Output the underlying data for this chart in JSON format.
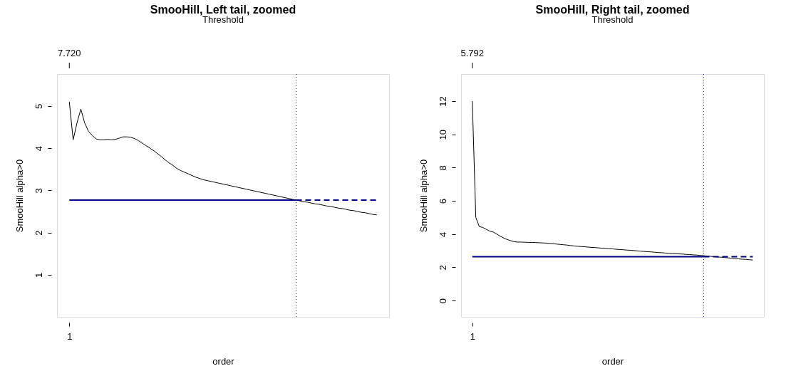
{
  "chart_data": [
    {
      "type": "line",
      "title": "SmooHill, Left tail, zoomed",
      "x2label": "Threshold",
      "xlabel": "order",
      "ylabel": "SmooHill alpha>0",
      "categories": [
        "1",
        null,
        null,
        null,
        null,
        null,
        null,
        null,
        null,
        null,
        null,
        null,
        null,
        null,
        null,
        null,
        null,
        null,
        null,
        null,
        null,
        null,
        null,
        null,
        null,
        null,
        null,
        null,
        null,
        null,
        null,
        null,
        null,
        null,
        null,
        null,
        null,
        null,
        null,
        null,
        null,
        null,
        null,
        null,
        null,
        null,
        null,
        null,
        null,
        null,
        null,
        null,
        null,
        null,
        null,
        null,
        null,
        null,
        null,
        null,
        null,
        null,
        null,
        null,
        null,
        null,
        null,
        null,
        null,
        null,
        null,
        null,
        null,
        null,
        null,
        null,
        null,
        null,
        null,
        null,
        null
      ],
      "ylim": [
        0,
        5.76
      ],
      "yticks": [
        1,
        2,
        3,
        4,
        5
      ],
      "grid": false,
      "annotations": [
        {
          "text": "7.720",
          "x": "1"
        }
      ],
      "series": [
        {
          "color": "#000000",
          "values": [
            5.1,
            4.2,
            4.6,
            4.93,
            4.6,
            4.4,
            4.3,
            4.22,
            4.2,
            4.2,
            4.21,
            4.2,
            4.21,
            4.24,
            4.27,
            4.27,
            4.26,
            4.23,
            4.18,
            4.12,
            4.06,
            4.0,
            3.94,
            3.87,
            3.8,
            3.72,
            3.65,
            3.59,
            3.52,
            3.47,
            3.43,
            3.39,
            3.35,
            3.31,
            3.28,
            3.25,
            3.23,
            3.21,
            3.19,
            3.17,
            3.15,
            3.13,
            3.11,
            3.09,
            3.07,
            3.05,
            3.03,
            3.01,
            2.99,
            2.97,
            2.95,
            2.93,
            2.91,
            2.89,
            2.87,
            2.85,
            2.83,
            2.81,
            2.79,
            2.77,
            2.75,
            2.73,
            2.72,
            2.7,
            2.68,
            2.67,
            2.65,
            2.63,
            2.62,
            2.6,
            2.58,
            2.57,
            2.55,
            2.53,
            2.52,
            2.5,
            2.48,
            2.47,
            2.45,
            2.43,
            2.42
          ]
        },
        {
          "color": "#000080",
          "line_style": "solid",
          "values": [
            2.77,
            2.77,
            2.77,
            2.77,
            2.77,
            2.77,
            2.77,
            2.77,
            2.77,
            2.77,
            2.77,
            2.77,
            2.77,
            2.77,
            2.77,
            2.77,
            2.77,
            2.77,
            2.77,
            2.77,
            2.77,
            2.77,
            2.77,
            2.77,
            2.77,
            2.77,
            2.77,
            2.77,
            2.77,
            2.77,
            2.77,
            2.77,
            2.77,
            2.77,
            2.77,
            2.77,
            2.77,
            2.77,
            2.77,
            2.77,
            2.77,
            2.77,
            2.77,
            2.77,
            2.77,
            2.77,
            2.77,
            2.77,
            2.77,
            2.77,
            2.77,
            2.77,
            2.77,
            2.77,
            2.77,
            2.77,
            2.77,
            2.77,
            2.77,
            2.77,
            null,
            null,
            null,
            null,
            null,
            null,
            null,
            null,
            null,
            null,
            null,
            null,
            null,
            null,
            null,
            null,
            null,
            null,
            null,
            null,
            null
          ]
        },
        {
          "color": "#000080",
          "line_style": "dashed",
          "values": [
            null,
            null,
            null,
            null,
            null,
            null,
            null,
            null,
            null,
            null,
            null,
            null,
            null,
            null,
            null,
            null,
            null,
            null,
            null,
            null,
            null,
            null,
            null,
            null,
            null,
            null,
            null,
            null,
            null,
            null,
            null,
            null,
            null,
            null,
            null,
            null,
            null,
            null,
            null,
            null,
            null,
            null,
            null,
            null,
            null,
            null,
            null,
            null,
            null,
            null,
            null,
            null,
            null,
            null,
            null,
            null,
            null,
            null,
            null,
            2.77,
            2.77,
            2.77,
            2.77,
            2.77,
            2.77,
            2.77,
            2.77,
            2.77,
            2.77,
            2.77,
            2.77,
            2.77,
            2.77,
            2.77,
            2.77,
            2.77,
            2.77,
            2.77,
            2.77,
            2.77,
            2.77
          ]
        }
      ]
    },
    {
      "type": "line",
      "title": "SmooHill, Right tail, zoomed",
      "x2label": "Threshold",
      "xlabel": "order",
      "ylabel": "SmooHill alpha>0",
      "categories": [
        "1",
        null,
        null,
        null,
        null,
        null,
        null,
        null,
        null,
        null,
        null,
        null,
        null,
        null,
        null,
        null,
        null,
        null,
        null,
        null,
        null,
        null,
        null,
        null,
        null,
        null,
        null,
        null,
        null,
        null,
        null,
        null,
        null,
        null,
        null,
        null,
        null,
        null,
        null,
        null,
        null,
        null,
        null,
        null,
        null,
        null,
        null,
        null,
        null,
        null,
        null,
        null,
        null,
        null,
        null,
        null,
        null,
        null,
        null,
        null,
        null,
        null,
        null,
        null,
        null,
        null,
        null,
        null,
        null,
        null,
        null,
        null,
        null,
        null,
        null,
        null,
        null,
        null,
        null,
        null,
        null
      ],
      "ylim": [
        -0.98,
        13.63
      ],
      "yticks": [
        0,
        2,
        4,
        6,
        8,
        10,
        12
      ],
      "grid": false,
      "annotations": [
        {
          "text": "5.792",
          "x": "1"
        }
      ],
      "series": [
        {
          "color": "#000000",
          "values": [
            12.0,
            5.0,
            4.45,
            4.4,
            4.28,
            4.18,
            4.12,
            4.0,
            3.87,
            3.76,
            3.67,
            3.6,
            3.54,
            3.52,
            3.52,
            3.51,
            3.5,
            3.5,
            3.49,
            3.48,
            3.47,
            3.46,
            3.44,
            3.42,
            3.4,
            3.38,
            3.36,
            3.34,
            3.31,
            3.29,
            3.27,
            3.25,
            3.24,
            3.22,
            3.2,
            3.19,
            3.17,
            3.15,
            3.14,
            3.12,
            3.11,
            3.09,
            3.07,
            3.06,
            3.04,
            3.03,
            3.01,
            2.99,
            2.97,
            2.96,
            2.94,
            2.93,
            2.91,
            2.89,
            2.88,
            2.86,
            2.85,
            2.83,
            2.82,
            2.81,
            2.8,
            2.78,
            2.77,
            2.75,
            2.74,
            2.72,
            2.7,
            2.68,
            2.66,
            2.64,
            2.62,
            2.61,
            2.59,
            2.57,
            2.55,
            2.53,
            2.51,
            2.49,
            2.48,
            2.46,
            2.44
          ]
        },
        {
          "color": "#000080",
          "line_style": "solid",
          "values": [
            2.64,
            2.64,
            2.64,
            2.64,
            2.64,
            2.64,
            2.64,
            2.64,
            2.64,
            2.64,
            2.64,
            2.64,
            2.64,
            2.64,
            2.64,
            2.64,
            2.64,
            2.64,
            2.64,
            2.64,
            2.64,
            2.64,
            2.64,
            2.64,
            2.64,
            2.64,
            2.64,
            2.64,
            2.64,
            2.64,
            2.64,
            2.64,
            2.64,
            2.64,
            2.64,
            2.64,
            2.64,
            2.64,
            2.64,
            2.64,
            2.64,
            2.64,
            2.64,
            2.64,
            2.64,
            2.64,
            2.64,
            2.64,
            2.64,
            2.64,
            2.64,
            2.64,
            2.64,
            2.64,
            2.64,
            2.64,
            2.64,
            2.64,
            2.64,
            2.64,
            2.64,
            2.64,
            2.64,
            2.64,
            2.64,
            2.64,
            2.64,
            null,
            null,
            null,
            null,
            null,
            null,
            null,
            null,
            null,
            null,
            null,
            null,
            null,
            null
          ]
        },
        {
          "color": "#000080",
          "line_style": "dashed",
          "values": [
            null,
            null,
            null,
            null,
            null,
            null,
            null,
            null,
            null,
            null,
            null,
            null,
            null,
            null,
            null,
            null,
            null,
            null,
            null,
            null,
            null,
            null,
            null,
            null,
            null,
            null,
            null,
            null,
            null,
            null,
            null,
            null,
            null,
            null,
            null,
            null,
            null,
            null,
            null,
            null,
            null,
            null,
            null,
            null,
            null,
            null,
            null,
            null,
            null,
            null,
            null,
            null,
            null,
            null,
            null,
            null,
            null,
            null,
            null,
            null,
            null,
            null,
            null,
            null,
            null,
            null,
            2.64,
            2.64,
            2.64,
            2.64,
            2.64,
            2.64,
            2.64,
            2.64,
            2.64,
            2.64,
            2.64,
            2.64,
            2.64,
            2.64,
            2.64
          ]
        }
      ]
    }
  ]
}
